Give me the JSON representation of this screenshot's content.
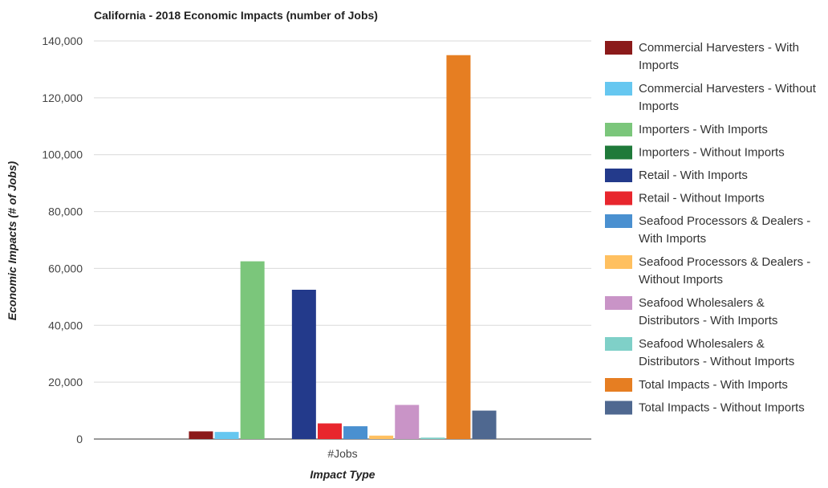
{
  "chart_data": {
    "type": "bar",
    "title": "California - 2018 Economic Impacts (number of Jobs)",
    "xlabel": "Impact Type",
    "ylabel": "Economic Impacts (# of Jobs)",
    "categories": [
      "#Jobs"
    ],
    "ylim": [
      0,
      140000
    ],
    "yticks": [
      0,
      20000,
      40000,
      60000,
      80000,
      100000,
      120000,
      140000
    ],
    "ytick_labels": [
      "0",
      "20,000",
      "40,000",
      "60,000",
      "80,000",
      "100,000",
      "120,000",
      "140,000"
    ],
    "grid": true,
    "legend_position": "right",
    "series": [
      {
        "name": "Commercial Harvesters - With Imports",
        "color": "#8b1a1a",
        "values": [
          2700
        ]
      },
      {
        "name": "Commercial Harvesters - Without Imports",
        "color": "#66c7f0",
        "values": [
          2500
        ]
      },
      {
        "name": "Importers - With Imports",
        "color": "#7bc67b",
        "values": [
          62500
        ]
      },
      {
        "name": "Importers - Without Imports",
        "color": "#1f7a3a",
        "values": [
          0
        ]
      },
      {
        "name": "Retail - With Imports",
        "color": "#233a8b",
        "values": [
          52500
        ]
      },
      {
        "name": "Retail - Without Imports",
        "color": "#e8262d",
        "values": [
          5500
        ]
      },
      {
        "name": "Seafood Processors & Dealers - With Imports",
        "color": "#4a90d0",
        "values": [
          4500
        ]
      },
      {
        "name": "Seafood Processors & Dealers - Without Imports",
        "color": "#ffc060",
        "values": [
          1200
        ]
      },
      {
        "name": "Seafood Wholesalers & Distributors - With Imports",
        "color": "#c994c7",
        "values": [
          12000
        ]
      },
      {
        "name": "Seafood Wholesalers & Distributors - Without Imports",
        "color": "#7fd0c8",
        "values": [
          500
        ]
      },
      {
        "name": "Total Impacts - With Imports",
        "color": "#e67e22",
        "values": [
          135000
        ]
      },
      {
        "name": "Total Impacts - Without Imports",
        "color": "#4f6890",
        "values": [
          10000
        ]
      }
    ]
  }
}
